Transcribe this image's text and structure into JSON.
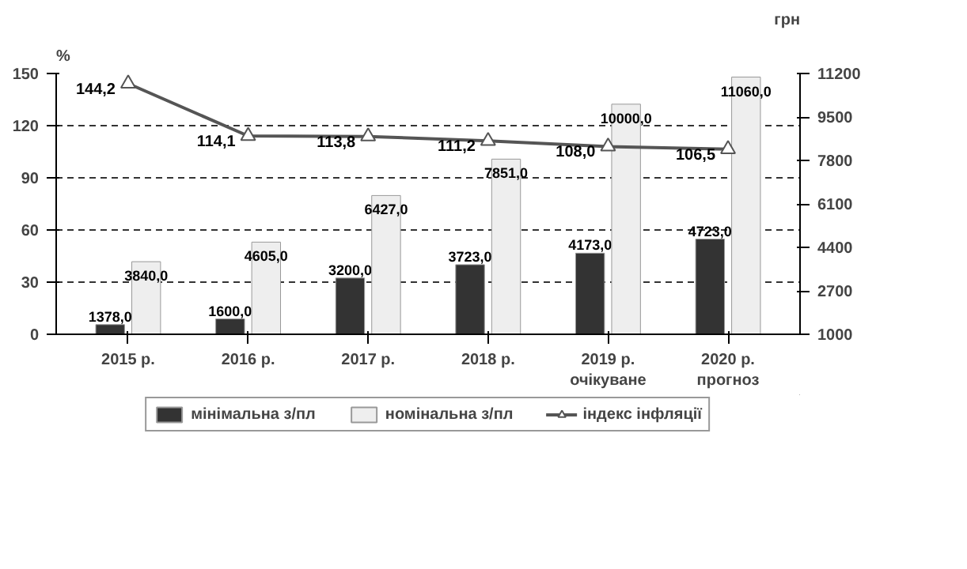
{
  "chart_data": {
    "type": "bar",
    "ylabel": "%",
    "y2label": "грн",
    "categories": [
      "2015 р.",
      "2016 р.",
      "2017 р.",
      "2018 р.",
      "2019 р.\nочікуване",
      "2020 р.\nпрогноз"
    ],
    "series": [
      {
        "name": "мінімальна з/пл",
        "type": "bar",
        "axis": "y2",
        "color": "#333333",
        "values": [
          1378.0,
          1600.0,
          3200.0,
          3723.0,
          4173.0,
          4723.0
        ],
        "value_labels": [
          "1378,0",
          "1600,0",
          "3200,0",
          "3723,0",
          "4173,0",
          "4723,0"
        ]
      },
      {
        "name": "номінальна з/пл",
        "type": "bar",
        "axis": "y2",
        "color": "#eeeeee",
        "values": [
          3840.0,
          4605.0,
          6427.0,
          7851.0,
          10000.0,
          11060.0
        ],
        "value_labels": [
          "3840,0",
          "4605,0",
          "6427,0",
          "7851,0",
          "10000,0",
          "11060,0"
        ]
      },
      {
        "name": "індекс інфляції",
        "type": "line",
        "color": "#555555",
        "marker": "triangle",
        "values": [
          144.2,
          114.1,
          113.8,
          111.2,
          108.0,
          106.5
        ],
        "value_labels": [
          "144,2",
          "114,1",
          "113,8",
          "111,2",
          "108,0",
          "106,5"
        ]
      }
    ],
    "ylim": [
      0,
      150
    ],
    "yticks": [
      0,
      30,
      60,
      90,
      120,
      150
    ],
    "y2lim": [
      1000,
      11200
    ],
    "y2ticks": [
      1000,
      2700,
      4400,
      6100,
      7800,
      9500,
      11200
    ],
    "grid": "y",
    "legend": "bottom"
  }
}
